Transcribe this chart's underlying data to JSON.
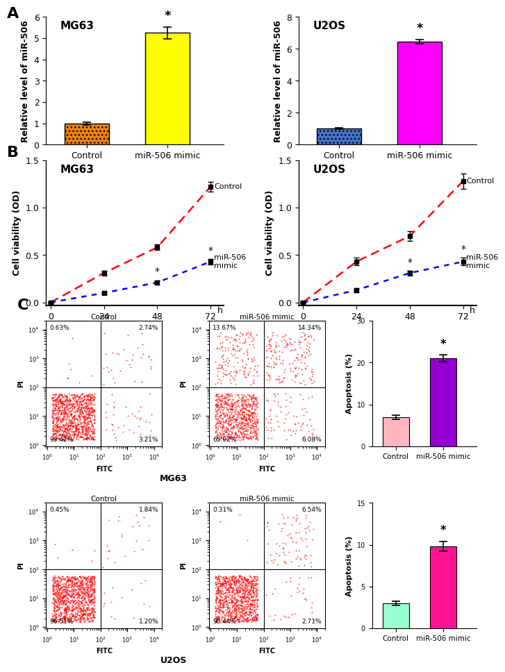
{
  "panel_A": {
    "MG63": {
      "categories": [
        "Control",
        "miR-506 mimic"
      ],
      "values": [
        1.0,
        5.25
      ],
      "errors": [
        0.06,
        0.28
      ],
      "colors": [
        "#E8801A",
        "#FFFF00"
      ],
      "ylabel": "Relative level of miR-506",
      "title": "MG63",
      "ylim": [
        0,
        6.0
      ],
      "yticks": [
        0,
        1.0,
        2.0,
        3.0,
        4.0,
        5.0,
        6.0
      ]
    },
    "U2OS": {
      "categories": [
        "Control",
        "miR-506 mimic"
      ],
      "values": [
        1.0,
        6.45
      ],
      "errors": [
        0.04,
        0.12
      ],
      "colors": [
        "#4472C4",
        "#FF00FF"
      ],
      "ylabel": "Relative level of miR-506",
      "title": "U2OS",
      "ylim": [
        0,
        8.0
      ],
      "yticks": [
        0,
        2.0,
        4.0,
        6.0,
        8.0
      ]
    }
  },
  "panel_B": {
    "MG63": {
      "title": "MG63",
      "ylabel": "Cell viability (OD)",
      "xlim": [
        -2,
        78
      ],
      "ylim": [
        -0.03,
        1.5
      ],
      "yticks": [
        0.0,
        0.5,
        1.0,
        1.5
      ],
      "xticks": [
        0,
        24,
        48,
        72
      ],
      "control": {
        "x": [
          0,
          24,
          48,
          72
        ],
        "y": [
          0.0,
          0.31,
          0.58,
          1.22
        ],
        "yerr": [
          0.005,
          0.025,
          0.03,
          0.05
        ],
        "color": "#FF0000",
        "label": "Control"
      },
      "mimic": {
        "x": [
          0,
          24,
          48,
          72
        ],
        "y": [
          0.0,
          0.1,
          0.21,
          0.43
        ],
        "yerr": [
          0.005,
          0.015,
          0.025,
          0.03
        ],
        "color": "#0000FF",
        "label": "miR-506\nmimic",
        "star_indices": [
          2,
          3
        ]
      }
    },
    "U2OS": {
      "title": "U2OS",
      "ylabel": "Cell viability (OD)",
      "xlim": [
        -2,
        78
      ],
      "ylim": [
        -0.03,
        1.5
      ],
      "yticks": [
        0.0,
        0.5,
        1.0,
        1.5
      ],
      "xticks": [
        0,
        24,
        48,
        72
      ],
      "control": {
        "x": [
          0,
          24,
          48,
          72
        ],
        "y": [
          0.0,
          0.43,
          0.7,
          1.28
        ],
        "yerr": [
          0.005,
          0.04,
          0.05,
          0.08
        ],
        "color": "#FF0000",
        "label": "Control"
      },
      "mimic": {
        "x": [
          0,
          24,
          48,
          72
        ],
        "y": [
          0.0,
          0.13,
          0.31,
          0.43
        ],
        "yerr": [
          0.005,
          0.02,
          0.025,
          0.04
        ],
        "color": "#0000FF",
        "label": "miR-506\nmimic",
        "star_indices": [
          2,
          3
        ]
      }
    }
  },
  "panel_C": {
    "MG63_bar": {
      "categories": [
        "Control",
        "miR-506 mimic"
      ],
      "values": [
        7.0,
        21.0
      ],
      "errors": [
        0.5,
        0.8
      ],
      "colors": [
        "#FFB6C1",
        "#9400D3"
      ],
      "ylabel": "Apoptosis (%)",
      "ylim": [
        0,
        30
      ],
      "yticks": [
        0,
        10,
        20,
        30
      ]
    },
    "U2OS_bar": {
      "categories": [
        "Control",
        "miR-506 mimic"
      ],
      "values": [
        3.0,
        9.8
      ],
      "errors": [
        0.25,
        0.55
      ],
      "colors": [
        "#98FFD0",
        "#FF1493"
      ],
      "ylabel": "Apoptosis (%)",
      "ylim": [
        0,
        15
      ],
      "yticks": [
        0,
        5,
        10,
        15
      ]
    }
  },
  "flow_MG63_control": {
    "title": "Control",
    "q1": "0.63%",
    "q2": "2.74%",
    "q3": "93.42%",
    "q4": "3.21%",
    "seed": 10
  },
  "flow_MG63_mimic": {
    "title": "miR-506 mimic",
    "q1": "13.67%",
    "q2": "14.34%",
    "q3": "65.92%",
    "q4": "6.08%",
    "seed": 20
  },
  "flow_U2OS_control": {
    "title": "Control",
    "q1": "0.45%",
    "q2": "1.84%",
    "q3": "96.51%",
    "q4": "1.20%",
    "seed": 30
  },
  "flow_U2OS_mimic": {
    "title": "miR-506 mimic",
    "q1": "0.31%",
    "q2": "6.54%",
    "q3": "90.44%",
    "q4": "2.71%",
    "seed": 40
  },
  "label_fontsize": 10,
  "title_fontsize": 11,
  "tick_fontsize": 9,
  "panel_label_fontsize": 16
}
